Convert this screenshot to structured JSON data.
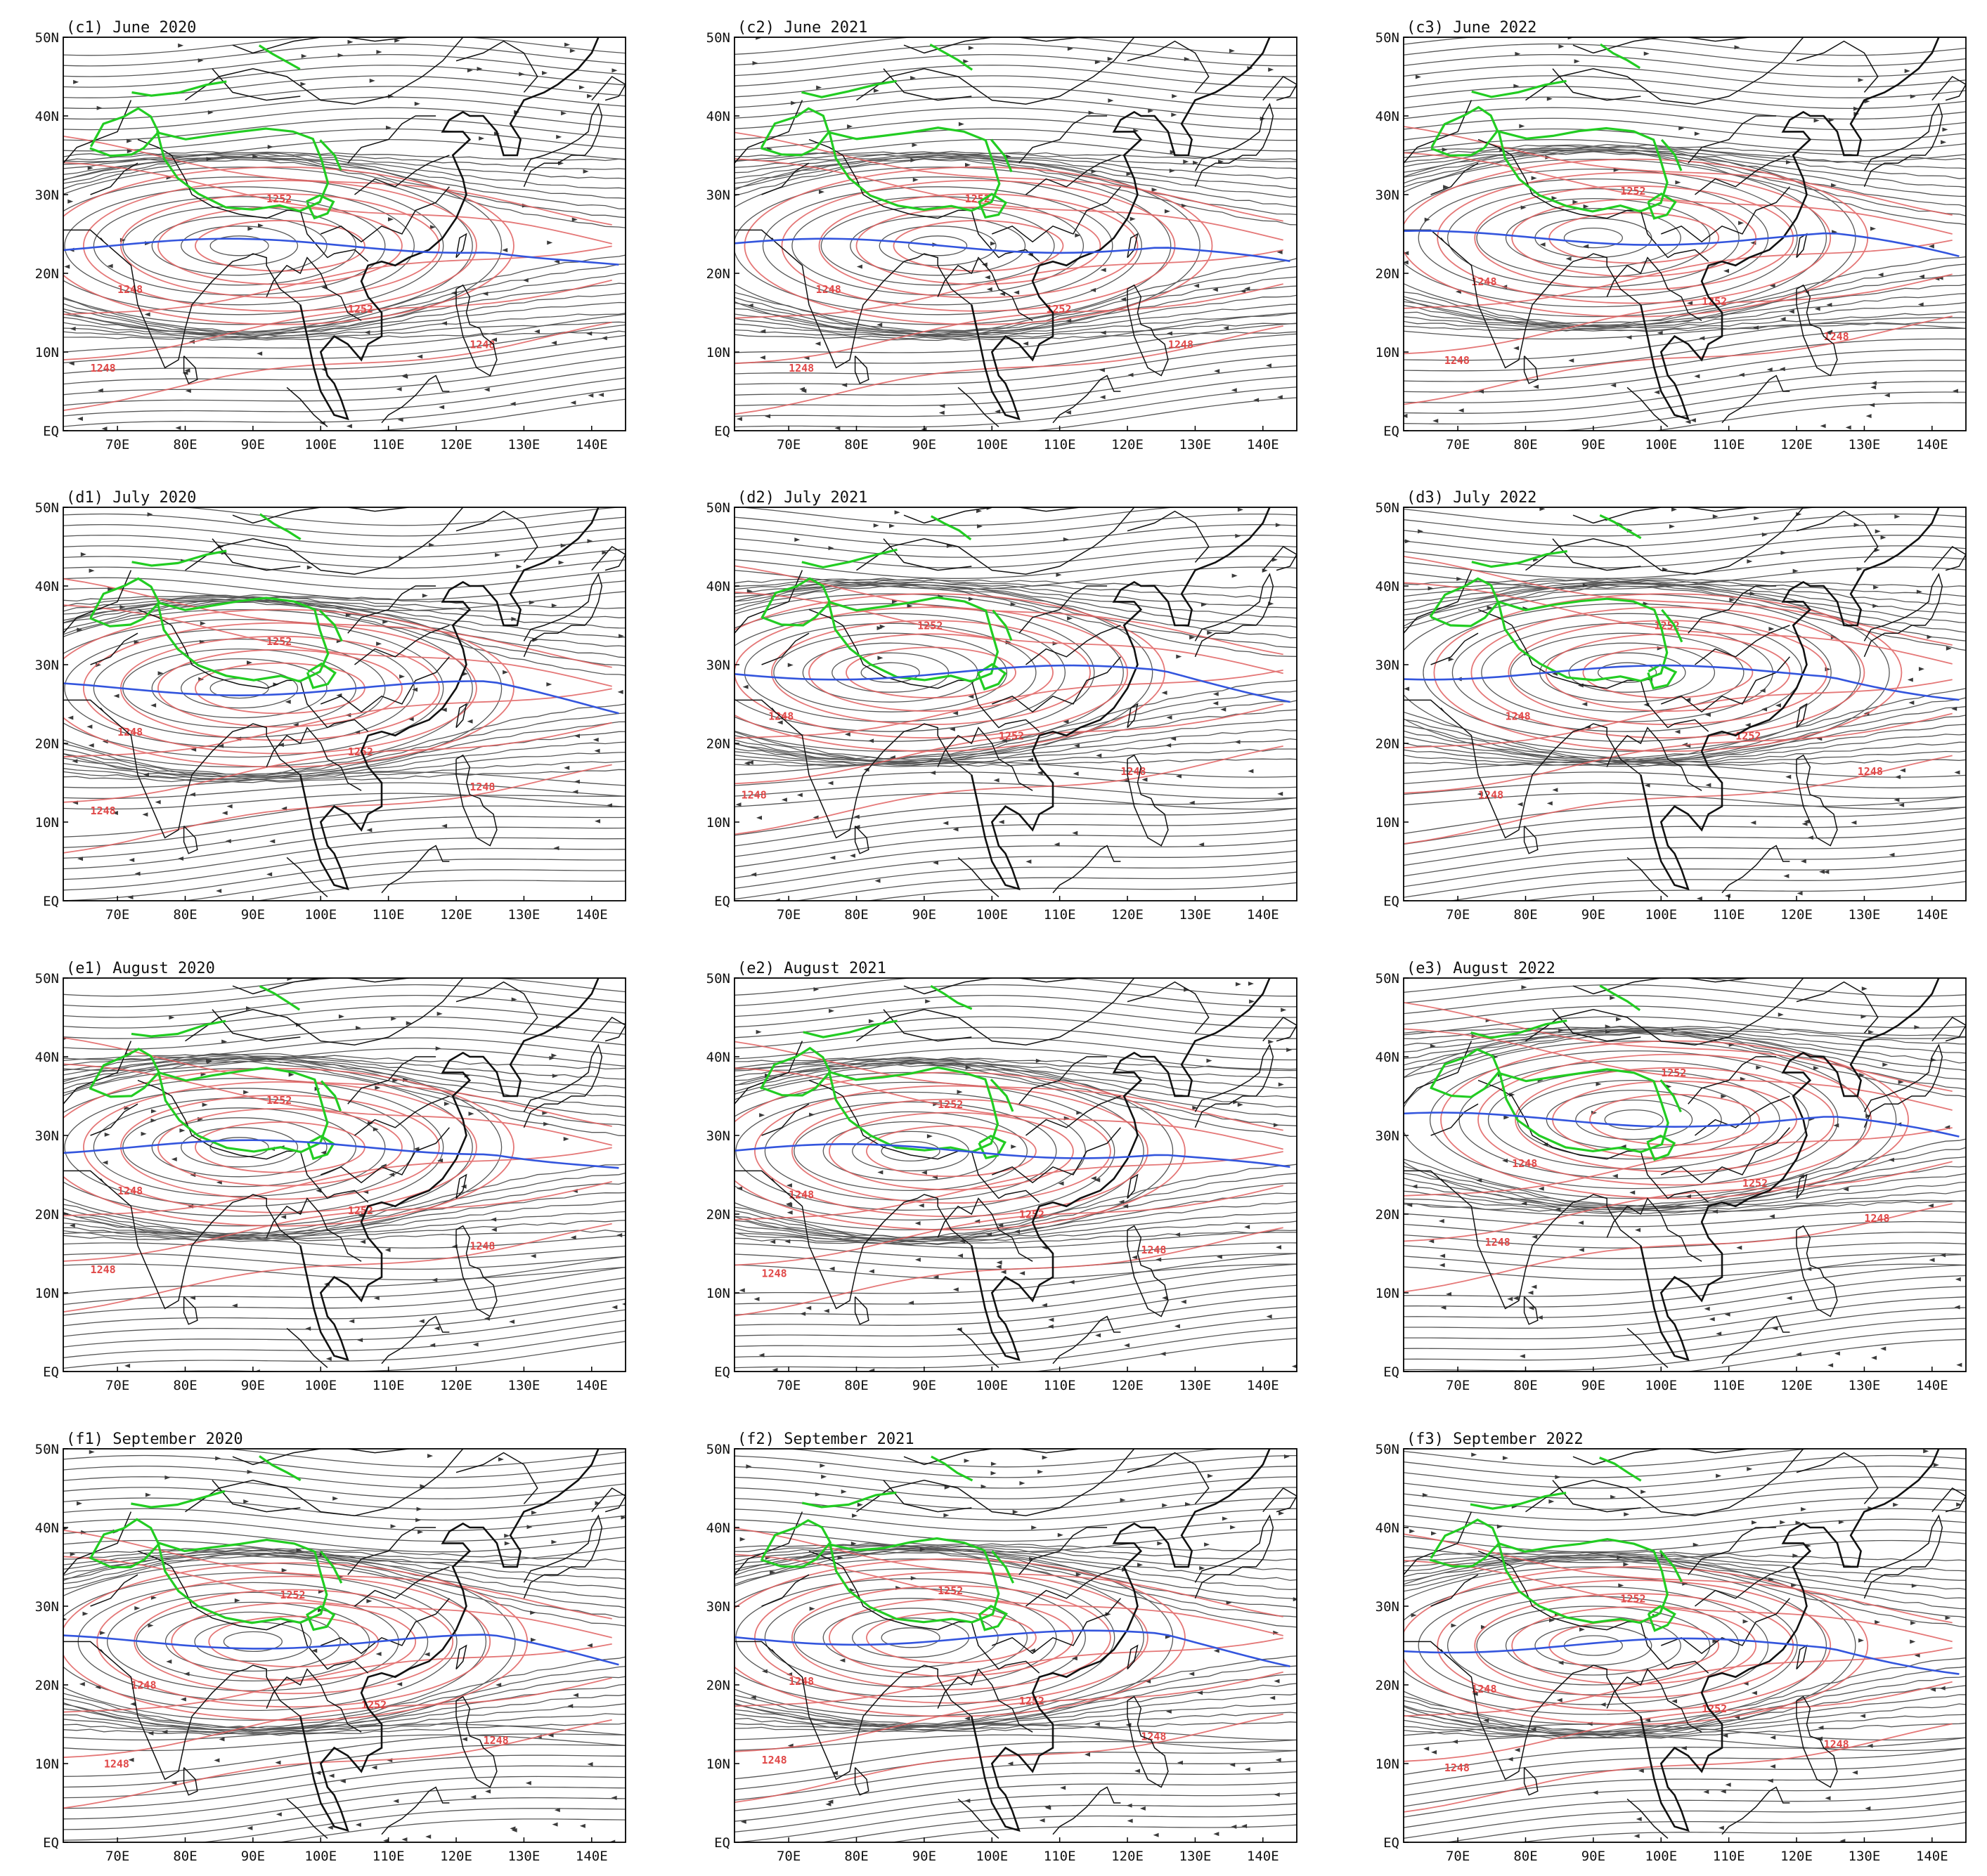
{
  "figure": {
    "panels": [
      {
        "tag": "(c1)",
        "title": "June 2020",
        "ridge_lat": 23.5,
        "ridge_lon": 88,
        "contour_labels": [
          "1252",
          "1248",
          "1252",
          "1248",
          "1248"
        ]
      },
      {
        "tag": "(c2)",
        "title": "June 2021",
        "ridge_lat": 23.5,
        "ridge_lon": 92,
        "contour_labels": [
          "1252",
          "1248",
          "1252",
          "1248",
          "1248"
        ]
      },
      {
        "tag": "(c3)",
        "title": "June 2022",
        "ridge_lat": 24.5,
        "ridge_lon": 90,
        "contour_labels": [
          "1252",
          "1248",
          "1252",
          "1248",
          "1248"
        ]
      },
      {
        "tag": "(d1)",
        "title": "July 2020",
        "ridge_lat": 27,
        "ridge_lon": 88,
        "contour_labels": [
          "1252",
          "1248",
          "1252",
          "1248",
          "1248"
        ]
      },
      {
        "tag": "(d2)",
        "title": "July 2021",
        "ridge_lat": 29,
        "ridge_lon": 85,
        "contour_labels": [
          "1252",
          "1248",
          "1252",
          "1248",
          "1248"
        ]
      },
      {
        "tag": "(d3)",
        "title": "July 2022",
        "ridge_lat": 29,
        "ridge_lon": 95,
        "contour_labels": [
          "1252",
          "1248",
          "1252",
          "1248",
          "1248"
        ]
      },
      {
        "tag": "(e1)",
        "title": "August 2020",
        "ridge_lat": 28.5,
        "ridge_lon": 88,
        "contour_labels": [
          "1252",
          "1248",
          "1252",
          "1248",
          "1248"
        ]
      },
      {
        "tag": "(e2)",
        "title": "August 2021",
        "ridge_lat": 28,
        "ridge_lon": 88,
        "contour_labels": [
          "1252",
          "1248",
          "1252",
          "1248",
          "1248"
        ]
      },
      {
        "tag": "(e3)",
        "title": "August 2022",
        "ridge_lat": 32,
        "ridge_lon": 96,
        "contour_labels": [
          "1252",
          "1248",
          "1252",
          "1248",
          "1248"
        ]
      },
      {
        "tag": "(f1)",
        "title": "September 2020",
        "ridge_lat": 25.5,
        "ridge_lon": 90,
        "contour_labels": [
          "1252",
          "1248",
          "1252",
          "1248",
          "1248"
        ]
      },
      {
        "tag": "(f2)",
        "title": "September 2021",
        "ridge_lat": 26,
        "ridge_lon": 88,
        "contour_labels": [
          "1252",
          "1248",
          "1252",
          "1248",
          "1248"
        ]
      },
      {
        "tag": "(f3)",
        "title": "September 2022",
        "ridge_lat": 25,
        "ridge_lon": 90,
        "contour_labels": [
          "1252",
          "1248",
          "1252",
          "1248",
          "1248"
        ]
      }
    ],
    "lat_ticks": [
      "50N",
      "40N",
      "30N",
      "20N",
      "10N",
      "EQ"
    ],
    "lon_ticks": [
      "70E",
      "80E",
      "90E",
      "100E",
      "110E",
      "120E",
      "130E",
      "140E"
    ],
    "colors": {
      "streamline": "#3a3a3a",
      "coast": "#111111",
      "plateau_contour": "#22cc22",
      "geopotential_contour": "#e06060",
      "ridge_line": "#3355dd",
      "frame": "#000000"
    }
  }
}
